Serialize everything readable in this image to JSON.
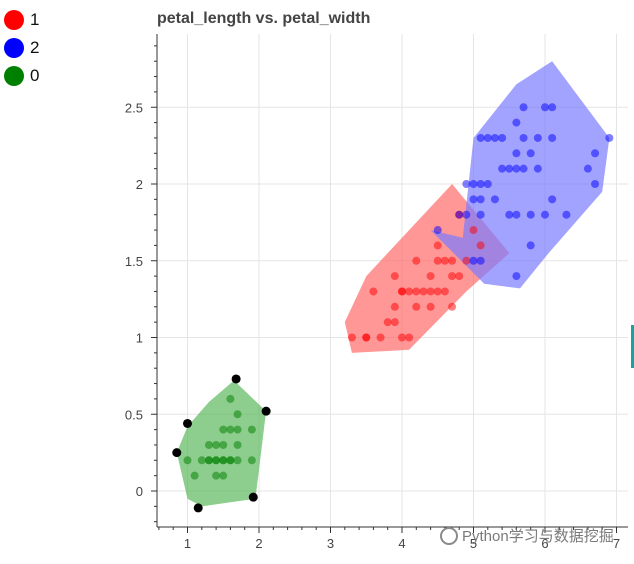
{
  "chart_data": {
    "type": "scatter",
    "title": "petal_length vs. petal_width",
    "xlabel": "",
    "ylabel": "",
    "xlim": [
      0.55,
      7.2
    ],
    "ylim": [
      -0.25,
      2.95
    ],
    "x_ticks": [
      1,
      2,
      3,
      4,
      5,
      6,
      7
    ],
    "y_ticks": [
      0,
      0.5,
      1,
      1.5,
      2,
      2.5
    ],
    "x_tick_labels": [
      "1",
      "2",
      "3",
      "4",
      "5",
      "6",
      "7"
    ],
    "y_tick_labels": [
      "0",
      "0.5",
      "1",
      "1.5",
      "2",
      "2.5"
    ],
    "grid": true,
    "legend_position": "top-left",
    "legend": [
      {
        "label": "1",
        "color": "#ff0000"
      },
      {
        "label": "2",
        "color": "#0000ff"
      },
      {
        "label": "0",
        "color": "#008000"
      }
    ],
    "series": [
      {
        "label": "1",
        "point_color": "#ff0000",
        "hull_color": "#ff6b6b",
        "hull": [
          [
            3.2,
            1.1
          ],
          [
            3.5,
            1.4
          ],
          [
            4.1,
            1.7
          ],
          [
            4.7,
            2.0
          ],
          [
            5.5,
            1.55
          ],
          [
            4.9,
            1.3
          ],
          [
            4.1,
            0.92
          ],
          [
            3.3,
            0.9
          ]
        ],
        "points": [
          [
            3.3,
            1.0
          ],
          [
            3.5,
            1.0
          ],
          [
            3.5,
            1.0
          ],
          [
            3.6,
            1.3
          ],
          [
            3.7,
            1.0
          ],
          [
            3.8,
            1.1
          ],
          [
            3.9,
            1.1
          ],
          [
            3.9,
            1.2
          ],
          [
            3.9,
            1.4
          ],
          [
            4.0,
            1.0
          ],
          [
            4.0,
            1.3
          ],
          [
            4.0,
            1.3
          ],
          [
            4.1,
            1.0
          ],
          [
            4.1,
            1.3
          ],
          [
            4.2,
            1.2
          ],
          [
            4.2,
            1.3
          ],
          [
            4.2,
            1.5
          ],
          [
            4.3,
            1.3
          ],
          [
            4.4,
            1.2
          ],
          [
            4.4,
            1.3
          ],
          [
            4.4,
            1.4
          ],
          [
            4.5,
            1.3
          ],
          [
            4.5,
            1.5
          ],
          [
            4.5,
            1.6
          ],
          [
            4.6,
            1.3
          ],
          [
            4.6,
            1.5
          ],
          [
            4.7,
            1.2
          ],
          [
            4.7,
            1.4
          ],
          [
            4.7,
            1.5
          ],
          [
            4.8,
            1.4
          ],
          [
            4.8,
            1.8
          ],
          [
            4.9,
            1.5
          ],
          [
            5.0,
            1.7
          ],
          [
            5.1,
            1.6
          ]
        ]
      },
      {
        "label": "2",
        "point_color": "#0000ff",
        "hull_color": "#7b7bff",
        "hull": [
          [
            4.85,
            1.65
          ],
          [
            5.0,
            2.3
          ],
          [
            5.6,
            2.65
          ],
          [
            6.1,
            2.8
          ],
          [
            6.9,
            2.3
          ],
          [
            6.8,
            1.95
          ],
          [
            6.05,
            1.55
          ],
          [
            5.65,
            1.32
          ],
          [
            5.15,
            1.35
          ],
          [
            4.4,
            1.7
          ]
        ],
        "points": [
          [
            4.5,
            1.7
          ],
          [
            4.8,
            1.8
          ],
          [
            4.9,
            1.8
          ],
          [
            4.9,
            2.0
          ],
          [
            5.0,
            1.5
          ],
          [
            5.0,
            1.9
          ],
          [
            5.0,
            2.0
          ],
          [
            5.1,
            1.5
          ],
          [
            5.1,
            1.8
          ],
          [
            5.1,
            1.9
          ],
          [
            5.1,
            2.0
          ],
          [
            5.1,
            2.3
          ],
          [
            5.2,
            2.0
          ],
          [
            5.2,
            2.3
          ],
          [
            5.3,
            1.9
          ],
          [
            5.3,
            2.3
          ],
          [
            5.4,
            2.1
          ],
          [
            5.4,
            2.3
          ],
          [
            5.5,
            1.8
          ],
          [
            5.5,
            2.1
          ],
          [
            5.6,
            1.4
          ],
          [
            5.6,
            1.8
          ],
          [
            5.6,
            2.1
          ],
          [
            5.6,
            2.2
          ],
          [
            5.6,
            2.4
          ],
          [
            5.7,
            2.1
          ],
          [
            5.7,
            2.3
          ],
          [
            5.7,
            2.5
          ],
          [
            5.8,
            1.6
          ],
          [
            5.8,
            1.8
          ],
          [
            5.8,
            2.2
          ],
          [
            5.9,
            2.1
          ],
          [
            5.9,
            2.3
          ],
          [
            6.0,
            1.8
          ],
          [
            6.0,
            2.5
          ],
          [
            6.1,
            1.9
          ],
          [
            6.1,
            2.3
          ],
          [
            6.1,
            2.5
          ],
          [
            6.3,
            1.8
          ],
          [
            6.6,
            2.1
          ],
          [
            6.7,
            2.0
          ],
          [
            6.7,
            2.2
          ],
          [
            6.9,
            2.3
          ]
        ]
      },
      {
        "label": "0",
        "point_color": "#008000",
        "hull_color": "#5cb85c",
        "hull": [
          [
            0.85,
            0.25
          ],
          [
            1.0,
            0.42
          ],
          [
            1.3,
            0.58
          ],
          [
            1.65,
            0.72
          ],
          [
            2.1,
            0.52
          ],
          [
            1.95,
            -0.05
          ],
          [
            1.2,
            -0.1
          ],
          [
            1.0,
            -0.05
          ]
        ],
        "points": [
          [
            1.0,
            0.2
          ],
          [
            1.1,
            0.1
          ],
          [
            1.2,
            0.2
          ],
          [
            1.3,
            0.2
          ],
          [
            1.3,
            0.3
          ],
          [
            1.3,
            0.2
          ],
          [
            1.4,
            0.2
          ],
          [
            1.4,
            0.3
          ],
          [
            1.4,
            0.2
          ],
          [
            1.4,
            0.1
          ],
          [
            1.5,
            0.2
          ],
          [
            1.5,
            0.4
          ],
          [
            1.5,
            0.2
          ],
          [
            1.5,
            0.1
          ],
          [
            1.6,
            0.2
          ],
          [
            1.6,
            0.4
          ],
          [
            1.6,
            0.6
          ],
          [
            1.7,
            0.2
          ],
          [
            1.7,
            0.5
          ],
          [
            1.7,
            0.4
          ],
          [
            1.7,
            0.3
          ],
          [
            1.9,
            0.2
          ],
          [
            1.9,
            0.4
          ],
          [
            1.5,
            0.3
          ],
          [
            1.6,
            0.2
          ]
        ],
        "hull_vertex_color": "#000000",
        "hull_vertices": [
          [
            0.85,
            0.25
          ],
          [
            1.0,
            0.44
          ],
          [
            1.68,
            0.73
          ],
          [
            2.1,
            0.52
          ],
          [
            1.92,
            -0.04
          ],
          [
            1.15,
            -0.11
          ]
        ]
      }
    ]
  },
  "watermark": {
    "text": "Python学习与数据挖掘"
  }
}
